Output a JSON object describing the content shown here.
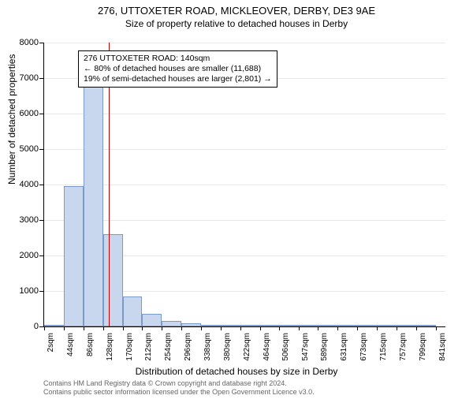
{
  "title": "276, UTTOXETER ROAD, MICKLEOVER, DERBY, DE3 9AE",
  "subtitle": "Size of property relative to detached houses in Derby",
  "ylabel": "Number of detached properties",
  "xlabel": "Distribution of detached houses by size in Derby",
  "chart": {
    "type": "histogram",
    "background_color": "#ffffff",
    "grid_color": "#e8e8e8",
    "axis_color": "#000000",
    "bar_fill": "#c8d7ee",
    "bar_stroke": "#7a9acc",
    "bar_stroke_width": 1,
    "ref_line_color": "#cc0000",
    "ref_line_width": 1.5,
    "ref_line_value": 140,
    "x_min": 0,
    "x_max": 862,
    "y_min": 0,
    "y_max": 8000,
    "yticks": [
      0,
      1000,
      2000,
      3000,
      4000,
      5000,
      6000,
      7000,
      8000
    ],
    "xticks": [
      {
        "v": 2,
        "l": "2sqm"
      },
      {
        "v": 44,
        "l": "44sqm"
      },
      {
        "v": 86,
        "l": "86sqm"
      },
      {
        "v": 128,
        "l": "128sqm"
      },
      {
        "v": 170,
        "l": "170sqm"
      },
      {
        "v": 212,
        "l": "212sqm"
      },
      {
        "v": 254,
        "l": "254sqm"
      },
      {
        "v": 296,
        "l": "296sqm"
      },
      {
        "v": 338,
        "l": "338sqm"
      },
      {
        "v": 380,
        "l": "380sqm"
      },
      {
        "v": 422,
        "l": "422sqm"
      },
      {
        "v": 464,
        "l": "464sqm"
      },
      {
        "v": 506,
        "l": "506sqm"
      },
      {
        "v": 547,
        "l": "547sqm"
      },
      {
        "v": 589,
        "l": "589sqm"
      },
      {
        "v": 631,
        "l": "631sqm"
      },
      {
        "v": 673,
        "l": "673sqm"
      },
      {
        "v": 715,
        "l": "715sqm"
      },
      {
        "v": 757,
        "l": "757sqm"
      },
      {
        "v": 799,
        "l": "799sqm"
      },
      {
        "v": 841,
        "l": "841sqm"
      }
    ],
    "bin_width": 42,
    "bins": [
      {
        "start": 2,
        "count": 35
      },
      {
        "start": 44,
        "count": 3950
      },
      {
        "start": 86,
        "count": 6800
      },
      {
        "start": 128,
        "count": 2600
      },
      {
        "start": 170,
        "count": 850
      },
      {
        "start": 212,
        "count": 350
      },
      {
        "start": 254,
        "count": 160
      },
      {
        "start": 296,
        "count": 90
      },
      {
        "start": 338,
        "count": 55
      },
      {
        "start": 380,
        "count": 30
      },
      {
        "start": 422,
        "count": 18
      },
      {
        "start": 464,
        "count": 10
      },
      {
        "start": 506,
        "count": 6
      },
      {
        "start": 547,
        "count": 4
      },
      {
        "start": 589,
        "count": 3
      },
      {
        "start": 631,
        "count": 2
      },
      {
        "start": 673,
        "count": 2
      },
      {
        "start": 715,
        "count": 1
      },
      {
        "start": 757,
        "count": 1
      },
      {
        "start": 799,
        "count": 1
      }
    ]
  },
  "annotation": {
    "line1": "276 UTTOXETER ROAD: 140sqm",
    "line2": "← 80% of detached houses are smaller (11,688)",
    "line3": "19% of semi-detached houses are larger (2,801) →",
    "border_color": "#000000",
    "background_color": "#ffffff",
    "font_size": 10.5
  },
  "footer": {
    "line1": "Contains HM Land Registry data © Crown copyright and database right 2024.",
    "line2": "Contains public sector information licensed under the Open Government Licence v3.0.",
    "color": "#666666",
    "font_size": 9
  }
}
